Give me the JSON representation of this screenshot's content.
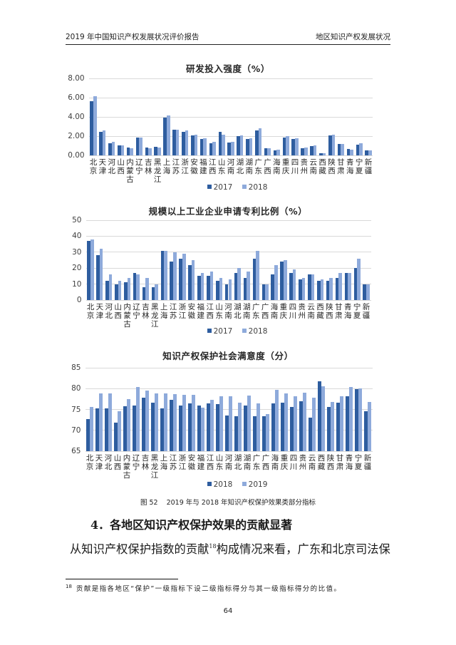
{
  "header": {
    "left": "2019 年中国知识产权发展状况评价报告",
    "right": "地区知识产权发展状况"
  },
  "chart_data": [
    {
      "type": "bar",
      "title": "研发投入强度（%）",
      "categories": [
        "北京",
        "天津",
        "河北",
        "山西",
        "内蒙古",
        "辽宁",
        "吉林",
        "黑龙江",
        "上海",
        "江苏",
        "浙江",
        "安徽",
        "福建",
        "江西",
        "山东",
        "河南",
        "湖北",
        "湖南",
        "广东",
        "广西",
        "海南",
        "重庆",
        "四川",
        "贵州",
        "云南",
        "西藏",
        "陕西",
        "甘肃",
        "青海",
        "宁夏",
        "新疆"
      ],
      "series": [
        {
          "name": "2017",
          "color": "#2e5d9f",
          "values": [
            5.64,
            2.47,
            1.26,
            1.03,
            0.82,
            1.84,
            0.84,
            0.9,
            3.93,
            2.63,
            2.45,
            2.09,
            1.69,
            1.28,
            2.41,
            1.31,
            1.97,
            1.68,
            2.61,
            0.77,
            0.52,
            1.88,
            1.72,
            0.71,
            0.96,
            0.22,
            2.1,
            1.19,
            0.68,
            1.13,
            0.52
          ]
        },
        {
          "name": "2018",
          "color": "#8eaadb",
          "values": [
            6.17,
            2.62,
            1.39,
            1.05,
            0.75,
            1.82,
            0.76,
            0.83,
            4.16,
            2.7,
            2.57,
            2.16,
            1.8,
            1.41,
            2.15,
            1.4,
            2.09,
            1.81,
            2.78,
            0.71,
            0.56,
            2.01,
            1.81,
            0.82,
            1.05,
            0.25,
            2.18,
            1.18,
            0.6,
            1.23,
            0.53
          ]
        }
      ],
      "ylim": [
        0,
        8
      ],
      "yticks": [
        "0.00",
        "2.00",
        "4.00",
        "6.00",
        "8.00"
      ],
      "grid": true,
      "legend": "bottom"
    },
    {
      "type": "bar",
      "title": "规模以上工业企业申请专利比例（%）",
      "categories": [
        "北京",
        "天津",
        "河北",
        "山西",
        "内蒙古",
        "辽宁",
        "吉林",
        "黑龙江",
        "上海",
        "江苏",
        "浙江",
        "安徽",
        "福建",
        "江西",
        "山东",
        "河南",
        "湖北",
        "湖南",
        "广东",
        "广西",
        "海南",
        "重庆",
        "四川",
        "贵州",
        "云南",
        "西藏",
        "陕西",
        "甘肃",
        "青海",
        "宁夏",
        "新疆"
      ],
      "series": [
        {
          "name": "2017",
          "color": "#2e5d9f",
          "values": [
            37,
            28,
            12,
            10,
            11,
            17,
            8,
            8,
            31,
            24,
            26,
            22,
            15,
            15,
            12,
            10,
            17,
            14,
            26,
            10,
            16,
            24,
            17,
            13,
            16,
            12,
            12,
            14,
            17,
            20,
            10
          ]
        },
        {
          "name": "2018",
          "color": "#8eaadb",
          "values": [
            38,
            32,
            16,
            12,
            14,
            16,
            14,
            10,
            31,
            30,
            29,
            25,
            17,
            18,
            14,
            13,
            20,
            18,
            31,
            10,
            22,
            25,
            19,
            14,
            16,
            13,
            14,
            17,
            17,
            26,
            10
          ]
        }
      ],
      "ylim": [
        0,
        50
      ],
      "yticks": [
        "0",
        "10",
        "20",
        "30",
        "40",
        "50"
      ],
      "grid": true,
      "legend": "bottom"
    },
    {
      "type": "bar",
      "title": "知识产权保护社会满意度（分）",
      "categories": [
        "北京",
        "天津",
        "河北",
        "山西",
        "内蒙古",
        "辽宁",
        "吉林",
        "黑龙江",
        "上海",
        "江苏",
        "浙江",
        "安徽",
        "福建",
        "江西",
        "山东",
        "河南",
        "湖北",
        "湖南",
        "广东",
        "广西",
        "海南",
        "重庆",
        "四川",
        "贵州",
        "云南",
        "西藏",
        "陕西",
        "甘肃",
        "青海",
        "宁夏",
        "新疆"
      ],
      "series": [
        {
          "name": "2018",
          "color": "#2e5d9f",
          "values": [
            72.7,
            75.2,
            75.2,
            71.8,
            75.8,
            76.0,
            77.8,
            76.6,
            75.3,
            77.3,
            75.9,
            76.4,
            75.9,
            76.4,
            76.3,
            73.5,
            73.4,
            75.9,
            73.3,
            73.3,
            76.4,
            76.6,
            75.6,
            77.0,
            73.0,
            81.7,
            75.6,
            76.6,
            78.2,
            79.9,
            74.6
          ]
        },
        {
          "name": "2019",
          "color": "#8eaadb",
          "values": [
            75.6,
            78.9,
            78.9,
            74.6,
            77.5,
            80.4,
            79.5,
            78.8,
            78.8,
            78.7,
            78.5,
            78.5,
            75.4,
            77.3,
            78.2,
            78.2,
            76.6,
            78.3,
            76.5,
            73.9,
            79.7,
            78.8,
            78.2,
            79.0,
            77.8,
            80.5,
            76.8,
            78.2,
            80.4,
            80.0,
            76.8
          ]
        }
      ],
      "ylim": [
        65,
        85
      ],
      "yticks": [
        "65",
        "70",
        "75",
        "80",
        "85"
      ],
      "grid": true,
      "legend": "bottom"
    }
  ],
  "figure_caption": {
    "number": "图 52",
    "text": "2019 年与 2018 年知识产权保护效果类部分指标"
  },
  "section": {
    "heading": "4．各地区知识产权保护效果的贡献显著"
  },
  "body": {
    "text_before": "从知识产权保护指数的贡献",
    "footnote_ref": "18",
    "text_after": "构成情况来看，广东和北京司法保"
  },
  "footnote": {
    "mark": "18",
    "text": "贡献是指各地区“保护”一级指标下设二级指标得分与其一级指标得分的比值。"
  },
  "page_number": "64"
}
